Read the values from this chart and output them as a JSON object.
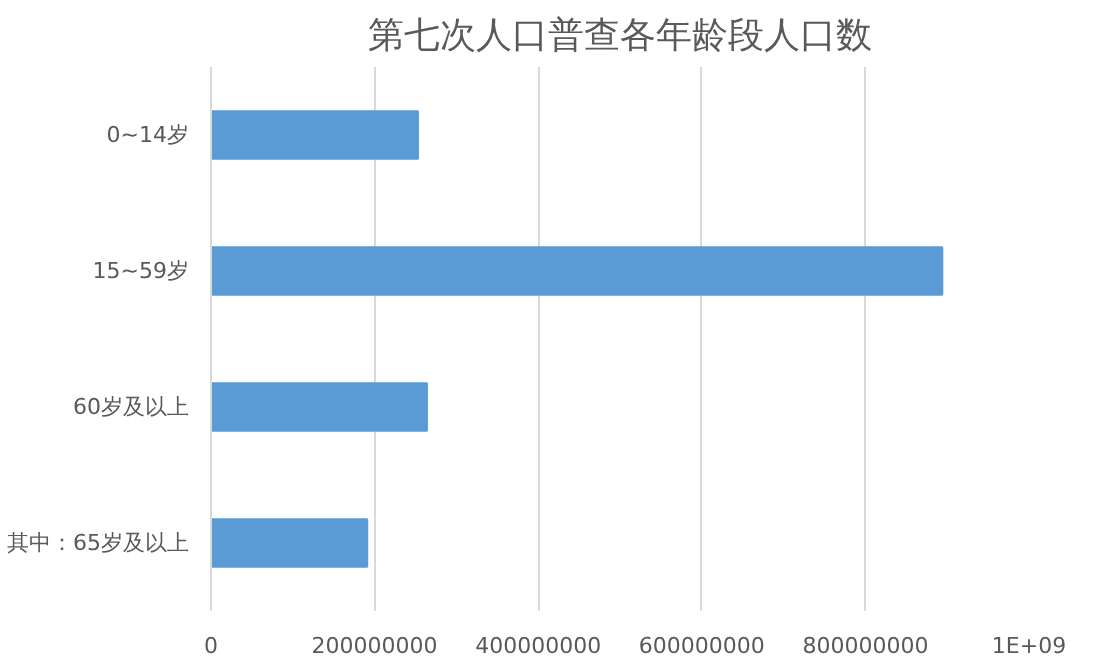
{
  "chart_data": {
    "type": "bar",
    "orientation": "horizontal",
    "title": "第七次人口普查各年龄段人口数",
    "categories": [
      "0~14岁",
      "15~59岁",
      "60岁及以上",
      "其中：65岁及以上"
    ],
    "values": [
      253000000,
      894000000,
      264000000,
      191000000
    ],
    "color": "#5b9bd5",
    "xlim": [
      0,
      1000000000
    ],
    "xticks": [
      0,
      200000000,
      400000000,
      600000000,
      800000000,
      {
        "value": 1000000000,
        "label": "1E+09"
      }
    ],
    "grid": "x"
  }
}
